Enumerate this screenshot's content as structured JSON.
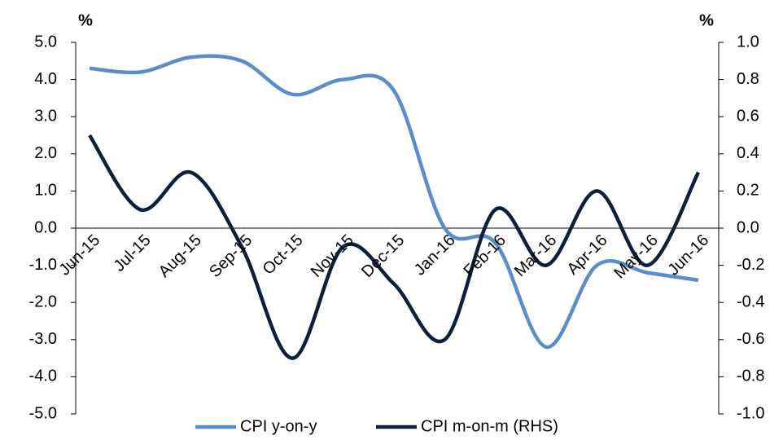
{
  "chart_data": {
    "type": "line",
    "y_label": "%",
    "y2_label": "%",
    "categories": [
      "Jun-15",
      "Jul-15",
      "Aug-15",
      "Sep-15",
      "Oct-15",
      "Nov-15",
      "Dec-15",
      "Jan-16",
      "Feb-16",
      "Mar-16",
      "Apr-16",
      "May-16",
      "Jun-16"
    ],
    "series": [
      {
        "name": "CPI y-on-y",
        "color": "#5b8ccb",
        "axis": "y",
        "values": [
          4.3,
          4.2,
          4.6,
          4.5,
          3.6,
          4.0,
          3.7,
          0.0,
          -0.4,
          -3.2,
          -1.0,
          -1.2,
          -1.4
        ]
      },
      {
        "name": "CPI m-on-m (RHS)",
        "color": "#0e1f3b",
        "axis": "y2",
        "values": [
          0.5,
          0.1,
          0.3,
          -0.1,
          -0.7,
          -0.1,
          -0.3,
          -0.6,
          0.1,
          -0.2,
          0.2,
          -0.2,
          0.3
        ]
      }
    ],
    "ylim": [
      -5,
      5
    ],
    "yticks": [
      {
        "value": 5,
        "label": "5.0"
      },
      {
        "value": 4,
        "label": "4.0"
      },
      {
        "value": 3,
        "label": "3.0"
      },
      {
        "value": 2,
        "label": "2.0"
      },
      {
        "value": 1,
        "label": "1.0"
      },
      {
        "value": 0,
        "label": "0.0"
      },
      {
        "value": -1,
        "label": "-1.0"
      },
      {
        "value": -2,
        "label": "-2.0"
      },
      {
        "value": -3,
        "label": "-3.0"
      },
      {
        "value": -4,
        "label": "-4.0"
      },
      {
        "value": -5,
        "label": "-5.0"
      }
    ],
    "y2lim": [
      -1,
      1
    ],
    "y2ticks": [
      {
        "value": 1,
        "label": "1.0"
      },
      {
        "value": 0.8,
        "label": "0.8"
      },
      {
        "value": 0.6,
        "label": "0.6"
      },
      {
        "value": 0.4,
        "label": "0.4"
      },
      {
        "value": 0.2,
        "label": "0.2"
      },
      {
        "value": 0,
        "label": "0.0"
      },
      {
        "value": -0.2,
        "label": "-0.2"
      },
      {
        "value": -0.4,
        "label": "-0.4"
      },
      {
        "value": -0.6,
        "label": "-0.6"
      },
      {
        "value": -0.8,
        "label": "-0.8"
      },
      {
        "value": -1,
        "label": "-1.0"
      }
    ],
    "legend": "bottom"
  }
}
